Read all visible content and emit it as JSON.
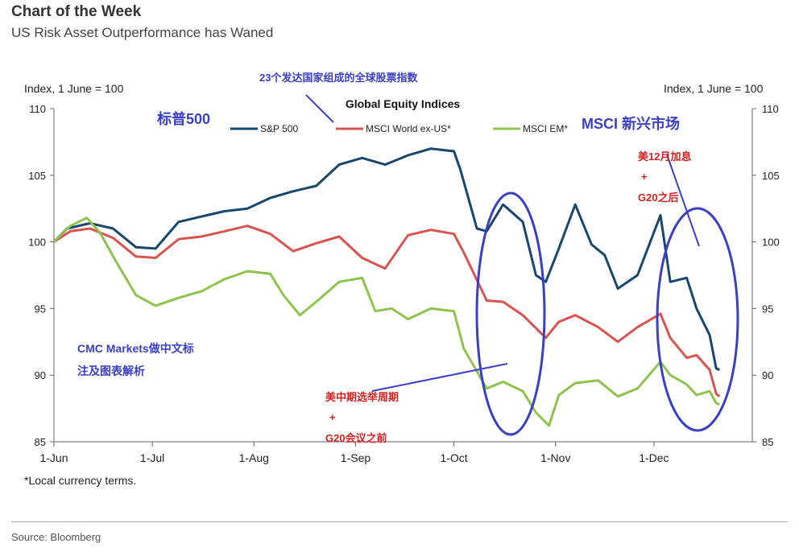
{
  "header": {
    "title": "Chart of the Week",
    "subtitle": "US Risk Asset Outperformance has Waned"
  },
  "notes": {
    "left_axis": "Index, 1 June = 100",
    "right_axis": "Index, 1 June = 100",
    "footnote": "*Local currency terms.",
    "source": "Source: Bloomberg"
  },
  "annotations": {
    "top_note": "23个发达国家组成的全球股票指数",
    "sp500_cn": "标普500",
    "msci_em_cn": "MSCI 新兴市场",
    "cmc_line1": "CMC Markets做中文标",
    "cmc_line2": "注及图表解析",
    "before_line1": "美中期选举周期",
    "before_line2": "+",
    "before_line3": "G20会议之前",
    "after_line1": "美12月加息",
    "after_line2": "+",
    "after_line3": "G20之后"
  },
  "colors": {
    "sp500": "#17476e",
    "msci_world": "#d9534f",
    "msci_em": "#8ec44b",
    "annotation_blue": "#3a3fc4",
    "annotation_red": "#d32020",
    "ellipse": "#3a3fc4"
  },
  "chart_data": {
    "type": "line",
    "title": "Global Equity Indices",
    "xlabel": "",
    "ylabel": "Index, 1 June = 100",
    "x_tick_labels": [
      "1-Jun",
      "1-Jul",
      "1-Aug",
      "1-Sep",
      "1-Oct",
      "1-Nov",
      "1-Dec"
    ],
    "ylim": [
      85,
      110
    ],
    "y_ticks": [
      85,
      90,
      95,
      100,
      105,
      110
    ],
    "legend_placement": "top",
    "grid": false,
    "series": [
      {
        "name": "S&P 500",
        "color_key": "sp500",
        "points": [
          [
            "2018-06-01",
            100.0
          ],
          [
            "2018-06-05",
            101.0
          ],
          [
            "2018-06-12",
            101.4
          ],
          [
            "2018-06-19",
            101.0
          ],
          [
            "2018-06-26",
            99.6
          ],
          [
            "2018-07-02",
            99.5
          ],
          [
            "2018-07-09",
            101.5
          ],
          [
            "2018-07-16",
            101.9
          ],
          [
            "2018-07-23",
            102.3
          ],
          [
            "2018-07-30",
            102.5
          ],
          [
            "2018-08-06",
            103.3
          ],
          [
            "2018-08-13",
            103.8
          ],
          [
            "2018-08-20",
            104.2
          ],
          [
            "2018-08-27",
            105.8
          ],
          [
            "2018-09-03",
            106.3
          ],
          [
            "2018-09-10",
            105.8
          ],
          [
            "2018-09-17",
            106.5
          ],
          [
            "2018-09-24",
            107.0
          ],
          [
            "2018-10-01",
            106.8
          ],
          [
            "2018-10-03",
            105.4
          ],
          [
            "2018-10-08",
            101.0
          ],
          [
            "2018-10-11",
            100.8
          ],
          [
            "2018-10-16",
            102.8
          ],
          [
            "2018-10-22",
            101.5
          ],
          [
            "2018-10-26",
            97.5
          ],
          [
            "2018-10-29",
            97.0
          ],
          [
            "2018-11-02",
            99.5
          ],
          [
            "2018-11-07",
            102.8
          ],
          [
            "2018-11-12",
            99.8
          ],
          [
            "2018-11-16",
            99.0
          ],
          [
            "2018-11-20",
            96.5
          ],
          [
            "2018-11-26",
            97.5
          ],
          [
            "2018-12-03",
            102.0
          ],
          [
            "2018-12-06",
            97.0
          ],
          [
            "2018-12-11",
            97.3
          ],
          [
            "2018-12-14",
            95.0
          ],
          [
            "2018-12-18",
            93.0
          ],
          [
            "2018-12-20",
            90.5
          ],
          [
            "2018-12-21",
            90.4
          ]
        ]
      },
      {
        "name": "MSCI World ex-US*",
        "color_key": "msci_world",
        "points": [
          [
            "2018-06-01",
            100.0
          ],
          [
            "2018-06-06",
            100.8
          ],
          [
            "2018-06-12",
            101.0
          ],
          [
            "2018-06-19",
            100.3
          ],
          [
            "2018-06-26",
            98.9
          ],
          [
            "2018-07-02",
            98.8
          ],
          [
            "2018-07-09",
            100.2
          ],
          [
            "2018-07-16",
            100.4
          ],
          [
            "2018-07-23",
            100.8
          ],
          [
            "2018-07-30",
            101.2
          ],
          [
            "2018-08-06",
            100.6
          ],
          [
            "2018-08-13",
            99.3
          ],
          [
            "2018-08-20",
            99.9
          ],
          [
            "2018-08-27",
            100.4
          ],
          [
            "2018-09-03",
            98.8
          ],
          [
            "2018-09-10",
            98.0
          ],
          [
            "2018-09-17",
            100.5
          ],
          [
            "2018-09-24",
            100.9
          ],
          [
            "2018-10-01",
            100.6
          ],
          [
            "2018-10-04",
            99.2
          ],
          [
            "2018-10-11",
            95.6
          ],
          [
            "2018-10-16",
            95.5
          ],
          [
            "2018-10-22",
            94.5
          ],
          [
            "2018-10-29",
            92.8
          ],
          [
            "2018-11-02",
            94.0
          ],
          [
            "2018-11-07",
            94.5
          ],
          [
            "2018-11-14",
            93.6
          ],
          [
            "2018-11-20",
            92.5
          ],
          [
            "2018-11-26",
            93.6
          ],
          [
            "2018-12-03",
            94.6
          ],
          [
            "2018-12-06",
            92.8
          ],
          [
            "2018-12-11",
            91.3
          ],
          [
            "2018-12-14",
            91.5
          ],
          [
            "2018-12-18",
            90.4
          ],
          [
            "2018-12-20",
            88.6
          ],
          [
            "2018-12-21",
            88.4
          ]
        ]
      },
      {
        "name": "MSCI EM*",
        "color_key": "msci_em",
        "points": [
          [
            "2018-06-01",
            100.0
          ],
          [
            "2018-06-06",
            101.2
          ],
          [
            "2018-06-11",
            101.8
          ],
          [
            "2018-06-15",
            100.7
          ],
          [
            "2018-06-20",
            98.5
          ],
          [
            "2018-06-26",
            96.0
          ],
          [
            "2018-07-02",
            95.2
          ],
          [
            "2018-07-09",
            95.8
          ],
          [
            "2018-07-16",
            96.3
          ],
          [
            "2018-07-23",
            97.2
          ],
          [
            "2018-07-30",
            97.8
          ],
          [
            "2018-08-06",
            97.6
          ],
          [
            "2018-08-10",
            96.0
          ],
          [
            "2018-08-15",
            94.5
          ],
          [
            "2018-08-20",
            95.5
          ],
          [
            "2018-08-27",
            97.0
          ],
          [
            "2018-09-03",
            97.3
          ],
          [
            "2018-09-07",
            94.8
          ],
          [
            "2018-09-12",
            95.0
          ],
          [
            "2018-09-17",
            94.2
          ],
          [
            "2018-09-24",
            95.0
          ],
          [
            "2018-10-01",
            94.8
          ],
          [
            "2018-10-04",
            92.0
          ],
          [
            "2018-10-11",
            89.0
          ],
          [
            "2018-10-16",
            89.5
          ],
          [
            "2018-10-22",
            88.8
          ],
          [
            "2018-10-26",
            87.2
          ],
          [
            "2018-10-30",
            86.2
          ],
          [
            "2018-11-02",
            88.5
          ],
          [
            "2018-11-07",
            89.4
          ],
          [
            "2018-11-14",
            89.6
          ],
          [
            "2018-11-20",
            88.4
          ],
          [
            "2018-11-26",
            89.0
          ],
          [
            "2018-12-03",
            91.0
          ],
          [
            "2018-12-06",
            90.0
          ],
          [
            "2018-12-11",
            89.3
          ],
          [
            "2018-12-14",
            88.5
          ],
          [
            "2018-12-18",
            88.8
          ],
          [
            "2018-12-20",
            87.9
          ],
          [
            "2018-12-21",
            87.8
          ]
        ]
      }
    ]
  }
}
